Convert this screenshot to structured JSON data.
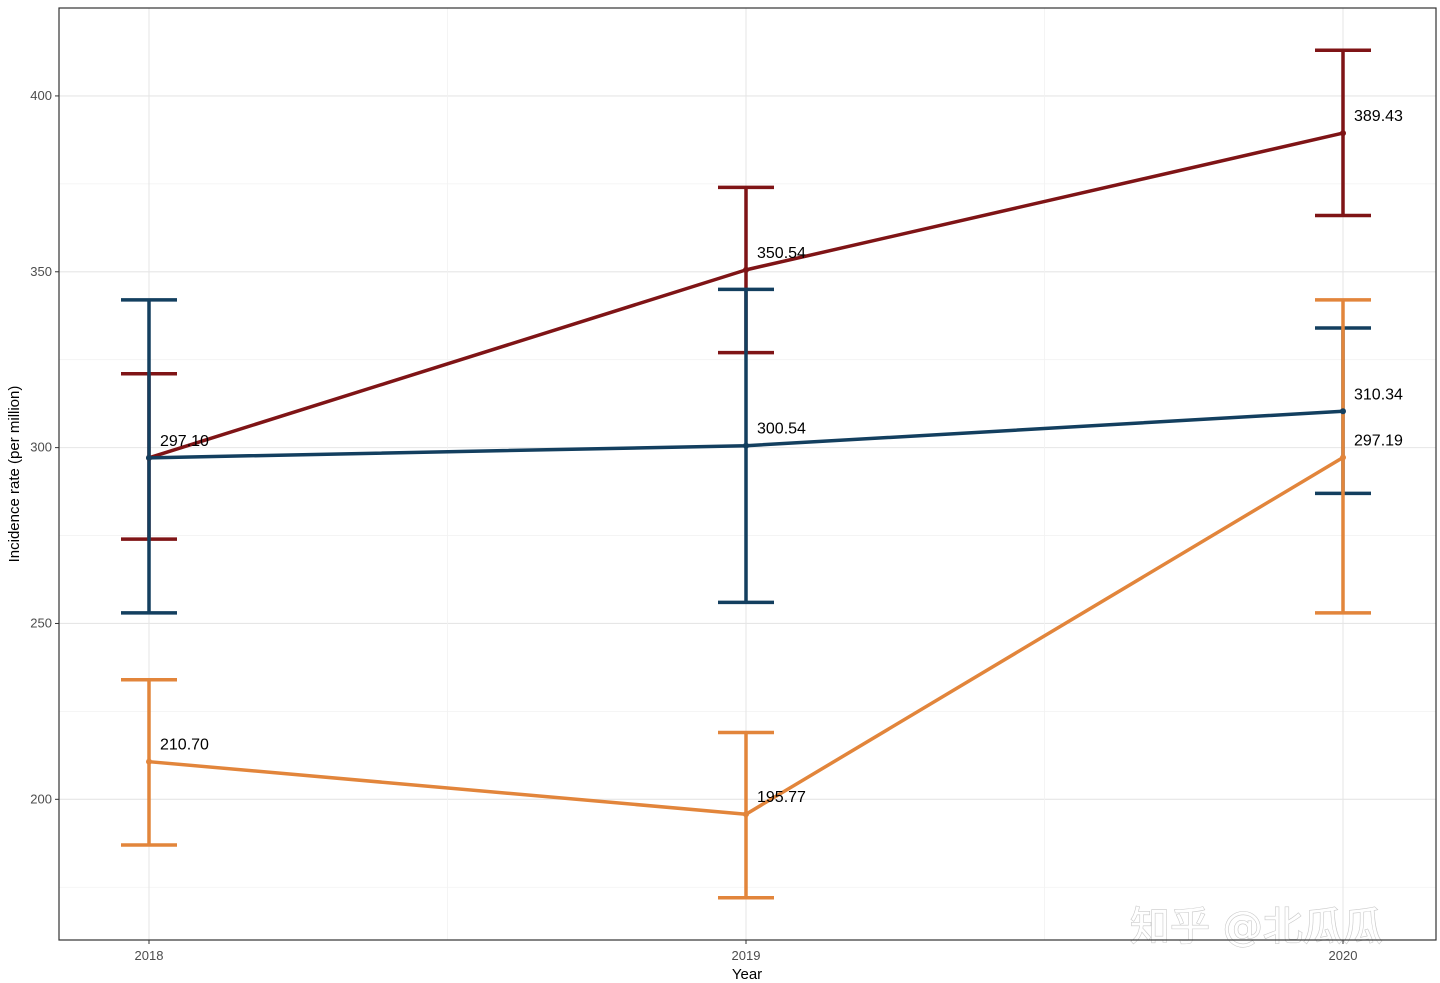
{
  "chart_data": {
    "type": "line",
    "title": "",
    "xlabel": "Year",
    "ylabel": "Incidence rate (per million)",
    "categories": [
      "2018",
      "2019",
      "2020"
    ],
    "ylim": [
      160,
      425
    ],
    "yticks": [
      200,
      250,
      300,
      350,
      400
    ],
    "ytick_labels": [
      "200",
      "250",
      "300",
      "350",
      "400"
    ],
    "grid": true,
    "legend": "none",
    "error_bars": true,
    "series": [
      {
        "color": "#7f1416",
        "values": [
          297.1,
          350.54,
          389.43
        ],
        "lower": [
          274,
          327,
          366
        ],
        "upper": [
          321,
          374,
          413
        ],
        "labels": [
          "297.10",
          "350.54",
          "389.43"
        ]
      },
      {
        "color": "#133f5f",
        "values": [
          297.1,
          300.54,
          310.34
        ],
        "lower": [
          253,
          256,
          287
        ],
        "upper": [
          342,
          345,
          334
        ],
        "labels": [
          "",
          "300.54",
          "310.34"
        ]
      },
      {
        "color": "#e2853b",
        "values": [
          210.7,
          195.77,
          297.19
        ],
        "lower": [
          187,
          172,
          253
        ],
        "upper": [
          234,
          219,
          342
        ],
        "labels": [
          "210.70",
          "195.77",
          "297.19"
        ]
      }
    ]
  },
  "watermark": "知乎 @北瓜瓜"
}
